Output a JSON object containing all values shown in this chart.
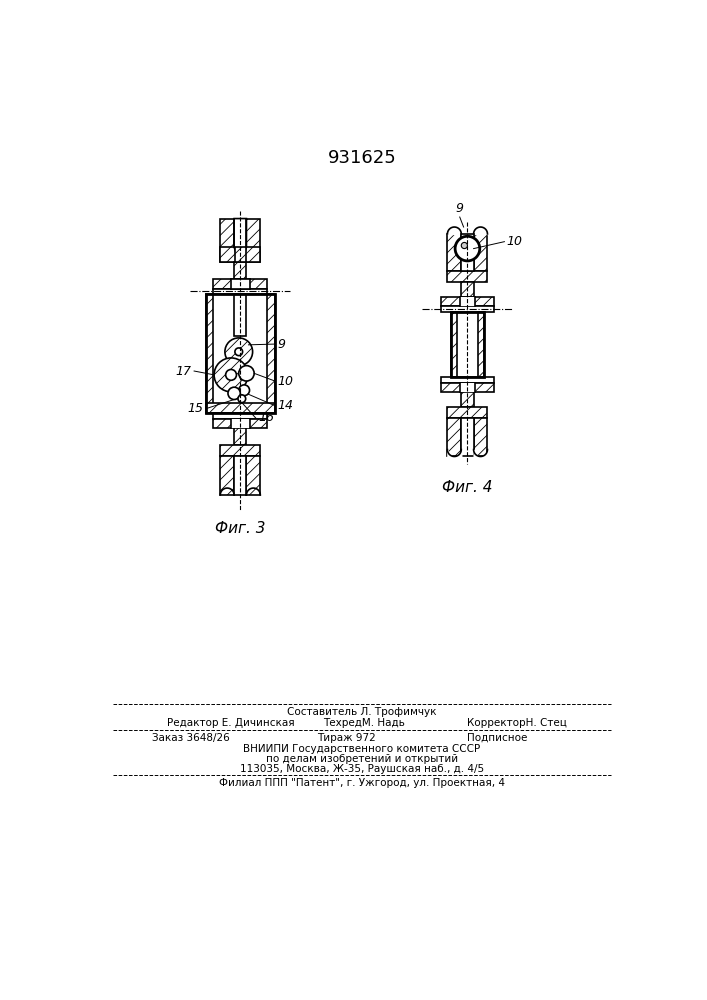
{
  "patent_number": "931625",
  "fig3_label": "Фиг. 3",
  "fig4_label": "Фиг. 4",
  "footer_line1": "Составитель Л. Трофимчук",
  "footer_line2_left": "Редактор Е. Дичинская",
  "footer_line2_mid": "ТехредМ. Надь",
  "footer_line2_right": "КорректорН. Стец",
  "footer_line3_left": "Заказ 3648/26",
  "footer_line3_mid": "Тираж 972",
  "footer_line3_right": "Подписное",
  "footer_line4": "ВНИИПИ Государственного комитета СССР",
  "footer_line5": "по делам изобретений и открытий",
  "footer_line6": "113035, Москва, Ж-35, Раушская наб., д. 4/5",
  "footer_line7": "Филиал ППП \"Патент\", г. Ужгород, ул. Проектная, 4",
  "bg_color": "#ffffff",
  "line_color": "#000000",
  "hatch_color": "#000000"
}
